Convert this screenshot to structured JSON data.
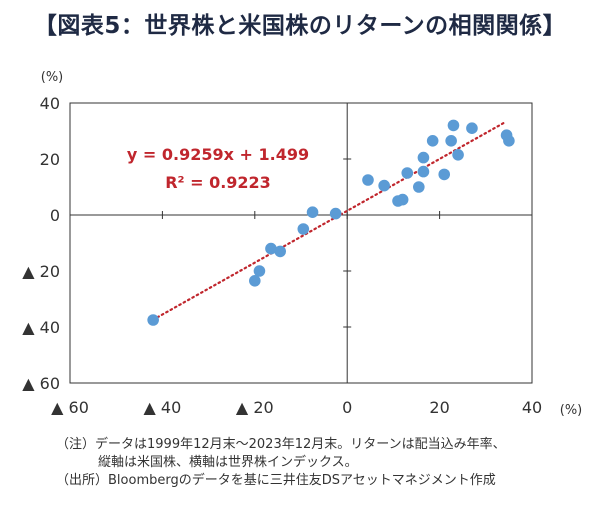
{
  "title": "【図表5：世界株と米国株のリターンの相関関係】",
  "chart_data": {
    "type": "scatter",
    "title": "【図表5：世界株と米国株のリターンの相関関係】",
    "xlabel": "",
    "ylabel": "",
    "x_unit": "(%)",
    "y_unit": "(%)",
    "xlim": [
      -60,
      40
    ],
    "ylim": [
      -60,
      40
    ],
    "x_ticks": [
      -60,
      -40,
      -20,
      0,
      20,
      40
    ],
    "y_ticks": [
      40,
      20,
      0,
      -20,
      -40,
      -60
    ],
    "x_tick_labels": [
      "▲ 60",
      "▲ 40",
      "▲ 20",
      "0",
      "20",
      "40"
    ],
    "y_tick_labels": [
      "40",
      "20",
      "0",
      "▲ 20",
      "▲ 40",
      "▲ 60"
    ],
    "grid": false,
    "points": [
      {
        "x": -42.0,
        "y": -37.5
      },
      {
        "x": -20.0,
        "y": -23.5
      },
      {
        "x": -19.0,
        "y": -20.0
      },
      {
        "x": -16.5,
        "y": -12.0
      },
      {
        "x": -14.5,
        "y": -13.0
      },
      {
        "x": -9.5,
        "y": -5.0
      },
      {
        "x": -7.5,
        "y": 1.0
      },
      {
        "x": -2.5,
        "y": 0.5
      },
      {
        "x": 4.5,
        "y": 12.5
      },
      {
        "x": 8.0,
        "y": 10.5
      },
      {
        "x": 11.0,
        "y": 5.0
      },
      {
        "x": 12.0,
        "y": 5.5
      },
      {
        "x": 13.0,
        "y": 15.0
      },
      {
        "x": 15.5,
        "y": 10.0
      },
      {
        "x": 16.5,
        "y": 15.5
      },
      {
        "x": 16.5,
        "y": 20.5
      },
      {
        "x": 18.5,
        "y": 26.5
      },
      {
        "x": 21.0,
        "y": 14.5
      },
      {
        "x": 22.5,
        "y": 26.5
      },
      {
        "x": 23.0,
        "y": 32.0
      },
      {
        "x": 24.0,
        "y": 21.5
      },
      {
        "x": 27.0,
        "y": 31.0
      },
      {
        "x": 34.5,
        "y": 28.5
      },
      {
        "x": 35.0,
        "y": 26.5
      }
    ],
    "trendline": {
      "slope": 0.9259,
      "intercept": 1.499,
      "x_range": [
        -42.0,
        34.0
      ],
      "style": "dotted"
    },
    "annotations": [
      "y = 0.9259x + 1.499",
      "R² = 0.9223"
    ],
    "colors": {
      "points": "#5b9bd5",
      "trendline": "#c0262d",
      "axes": "#333333"
    }
  },
  "notes": {
    "note_line1": "（注）データは1999年12月末～2023年12月末。リターンは配当込み年率、",
    "note_line2": "縦軸は米国株、横軸は世界株インデックス。",
    "source": "（出所）Bloombergのデータを基に三井住友DSアセットマネジメント作成"
  }
}
